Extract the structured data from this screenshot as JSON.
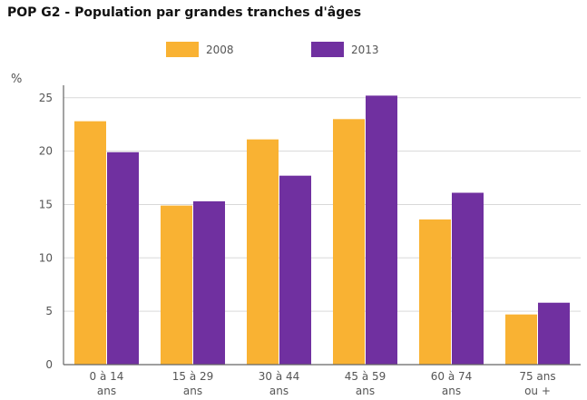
{
  "chart_data": {
    "type": "bar",
    "title": "POP G2 - Population par grandes tranches d'âges",
    "ylabel": "%",
    "xlabel": "",
    "categories": [
      [
        "0 à 14",
        "ans"
      ],
      [
        "15 à 29",
        "ans"
      ],
      [
        "30 à 44",
        "ans"
      ],
      [
        "45 à 59",
        "ans"
      ],
      [
        "60 à 74",
        "ans"
      ],
      [
        "75 ans",
        "ou +"
      ]
    ],
    "series": [
      {
        "name": "2008",
        "color": "#F9B233",
        "values": [
          22.8,
          14.9,
          21.1,
          23.0,
          13.6,
          4.7
        ]
      },
      {
        "name": "2013",
        "color": "#7030A0",
        "values": [
          19.9,
          15.3,
          17.7,
          25.2,
          16.1,
          5.8
        ]
      }
    ],
    "ylim": [
      0,
      26
    ],
    "yticks": [
      0,
      5,
      10,
      15,
      20,
      25
    ],
    "grid": true,
    "legend_position": "top"
  }
}
